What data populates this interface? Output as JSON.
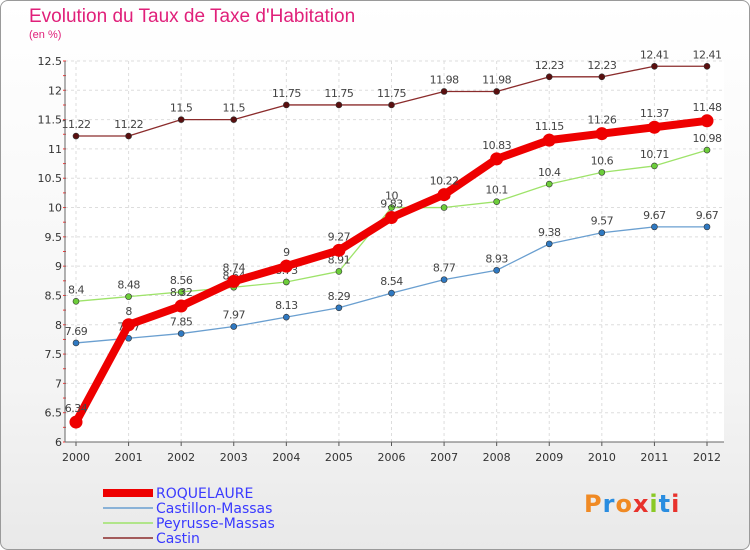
{
  "title": "Evolution du Taux de Taxe d'Habitation",
  "subtitle": "(en %)",
  "logo": {
    "text": "Proxiti",
    "colors": [
      "#f08a24",
      "#2a8de0",
      "#f08a24",
      "#e8322c",
      "#8ac926",
      "#2a8de0",
      "#e8322c"
    ]
  },
  "chart_data": {
    "type": "line",
    "x": [
      "2000",
      "2001",
      "2002",
      "2003",
      "2004",
      "2005",
      "2006",
      "2007",
      "2008",
      "2009",
      "2010",
      "2011",
      "2012"
    ],
    "ylim": [
      6,
      12.5
    ],
    "yticks": [
      "6",
      "6.5",
      "7",
      "7.5",
      "8",
      "8.5",
      "9",
      "9.5",
      "10",
      "10.5",
      "11",
      "11.5",
      "12",
      "12.5"
    ],
    "grid": true,
    "legend_position": "bottom-left",
    "series": [
      {
        "name": "Castin",
        "color": "#8b2c2c",
        "marker": "#5a0f0f",
        "values": [
          11.22,
          11.22,
          11.5,
          11.5,
          11.75,
          11.75,
          11.75,
          11.98,
          11.98,
          12.23,
          12.23,
          12.41,
          12.41
        ],
        "labels": [
          "11.22",
          "11.22",
          "11.5",
          "11.5",
          "11.75",
          "11.75",
          "11.75",
          "11.98",
          "11.98",
          "12.23",
          "12.23",
          "12.41",
          "12.41"
        ]
      },
      {
        "name": "Castillon-Massas",
        "color": "#6a9fd0",
        "marker": "#2f79c2",
        "values": [
          7.69,
          7.77,
          7.85,
          7.97,
          8.13,
          8.29,
          8.54,
          8.77,
          8.93,
          9.38,
          9.57,
          9.67,
          9.67
        ],
        "labels": [
          "7.69",
          "7.77",
          "7.85",
          "7.97",
          "8.13",
          "8.29",
          "8.54",
          "8.77",
          "8.93",
          "9.38",
          "9.57",
          "9.67",
          "9.67"
        ]
      },
      {
        "name": "Peyrusse-Massas",
        "color": "#9ee36a",
        "marker": "#6ccd3a",
        "values": [
          8.4,
          8.48,
          8.56,
          8.64,
          8.73,
          8.91,
          10,
          10,
          10.1,
          10.4,
          10.6,
          10.71,
          10.98
        ],
        "labels": [
          "8.4",
          "8.48",
          "8.56",
          "8.64",
          "8.73",
          "8.91",
          "10",
          "10",
          "10.1",
          "10.4",
          "10.6",
          "10.71",
          "10.98"
        ]
      },
      {
        "name": "ROQUELAURE",
        "color": "#ee0000",
        "marker": "#ee0000",
        "values": [
          6.34,
          8,
          8.32,
          8.74,
          9,
          9.27,
          9.83,
          10.22,
          10.83,
          11.15,
          11.26,
          11.37,
          11.48
        ],
        "labels": [
          "6.34",
          "8",
          "8.32",
          "8.74",
          "9",
          "9.27",
          "9.83",
          "10.22",
          "10.83",
          "11.15",
          "11.26",
          "11.37",
          "11.48"
        ]
      }
    ],
    "legend_order": [
      "ROQUELAURE",
      "Castillon-Massas",
      "Peyrusse-Massas",
      "Castin"
    ]
  }
}
